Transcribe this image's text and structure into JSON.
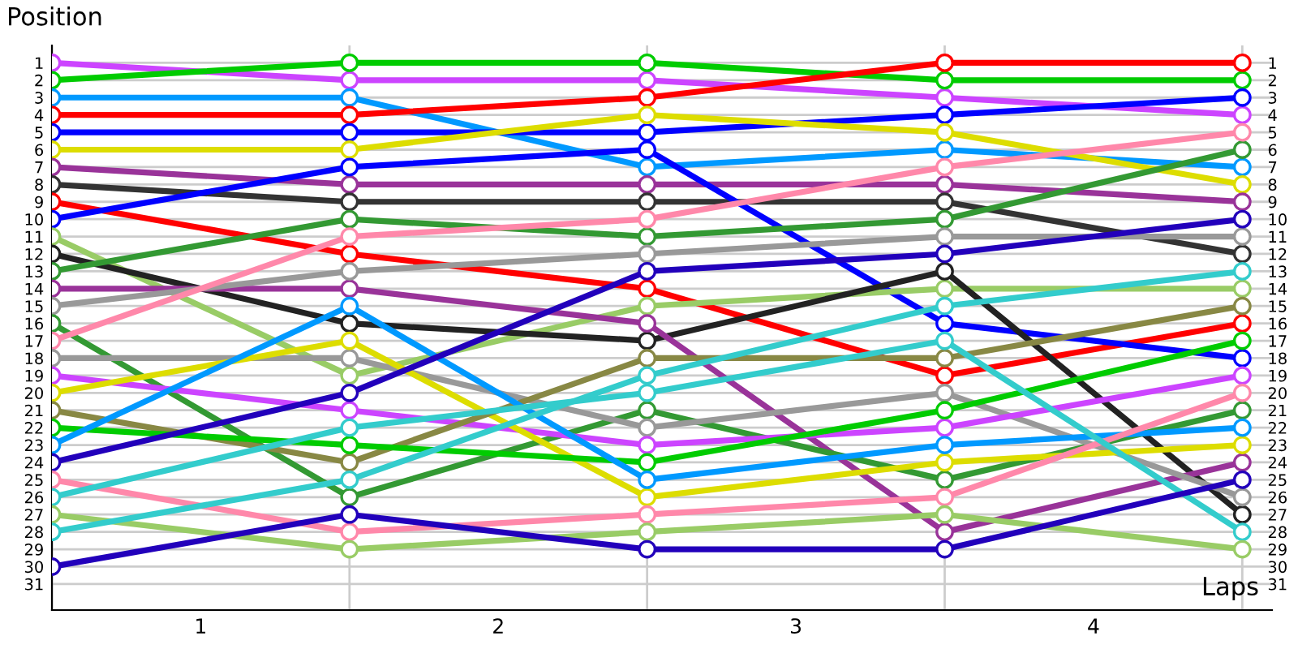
{
  "chart_data": {
    "type": "line",
    "ylabel": "Position",
    "xlabel": "Laps",
    "x": [
      0,
      1,
      2,
      3,
      4
    ],
    "xlim": [
      0,
      4.1
    ],
    "xticks": [
      {
        "value": 0,
        "label": null
      },
      {
        "value": 0.5,
        "label": "1"
      },
      {
        "value": 1,
        "label": null
      },
      {
        "value": 1.5,
        "label": "2"
      },
      {
        "value": 2,
        "label": null
      },
      {
        "value": 2.5,
        "label": "3"
      },
      {
        "value": 3,
        "label": null
      },
      {
        "value": 3.5,
        "label": "4"
      },
      {
        "value": 4,
        "label": null
      }
    ],
    "ylim": [
      32.5,
      0
    ],
    "yticks": [
      1,
      2,
      3,
      4,
      5,
      6,
      7,
      8,
      9,
      10,
      11,
      12,
      13,
      14,
      15,
      16,
      17,
      18,
      19,
      20,
      21,
      22,
      23,
      24,
      25,
      26,
      27,
      28,
      29,
      30,
      31
    ],
    "y2lim": [
      32.5,
      0
    ],
    "y2ticks": [
      1,
      2,
      3,
      4,
      5,
      6,
      7,
      8,
      9,
      10,
      11,
      12,
      13,
      14,
      15,
      16,
      17,
      18,
      19,
      20,
      21,
      22,
      23,
      24,
      25,
      26,
      27,
      28,
      29,
      30,
      31
    ],
    "grid": true,
    "legend": false,
    "marker": "circle",
    "line_style": "solid",
    "series": [
      {
        "color": "#cc44ff",
        "values": [
          1,
          2,
          2,
          3,
          4
        ]
      },
      {
        "color": "#00cc00",
        "values": [
          2,
          1,
          1,
          2,
          2
        ]
      },
      {
        "color": "#0099ff",
        "values": [
          3,
          3,
          7,
          6,
          7
        ]
      },
      {
        "color": "#ff0000",
        "values": [
          4,
          4,
          3,
          1,
          1
        ]
      },
      {
        "color": "#0000ff",
        "values": [
          5,
          5,
          5,
          4,
          3
        ]
      },
      {
        "color": "#dddd00",
        "values": [
          6,
          6,
          4,
          5,
          8
        ]
      },
      {
        "color": "#993399",
        "values": [
          7,
          8,
          8,
          8,
          9
        ]
      },
      {
        "color": "#333333",
        "values": [
          8,
          9,
          9,
          9,
          12
        ]
      },
      {
        "color": "#ff0000",
        "values": [
          9,
          12,
          14,
          19,
          16
        ]
      },
      {
        "color": "#0000ff",
        "values": [
          10,
          7,
          6,
          16,
          18
        ]
      },
      {
        "color": "#99cc66",
        "values": [
          11,
          19,
          15,
          14,
          14
        ]
      },
      {
        "color": "#222222",
        "values": [
          12,
          16,
          17,
          13,
          27
        ]
      },
      {
        "color": "#339933",
        "values": [
          13,
          10,
          11,
          10,
          6
        ]
      },
      {
        "color": "#993399",
        "values": [
          14,
          14,
          16,
          28,
          24
        ]
      },
      {
        "color": "#999999",
        "values": [
          15,
          13,
          12,
          11,
          11
        ]
      },
      {
        "color": "#339933",
        "values": [
          16,
          26,
          21,
          25,
          21
        ]
      },
      {
        "color": "#ff88aa",
        "values": [
          17,
          11,
          10,
          7,
          5
        ]
      },
      {
        "color": "#999999",
        "values": [
          18,
          18,
          22,
          20,
          26
        ]
      },
      {
        "color": "#cc44ff",
        "values": [
          19,
          21,
          23,
          22,
          19
        ]
      },
      {
        "color": "#dddd00",
        "values": [
          20,
          17,
          26,
          24,
          23
        ]
      },
      {
        "color": "#888844",
        "values": [
          21,
          24,
          18,
          18,
          15
        ]
      },
      {
        "color": "#00cc00",
        "values": [
          22,
          23,
          24,
          21,
          17
        ]
      },
      {
        "color": "#0099ff",
        "values": [
          23,
          15,
          25,
          23,
          22
        ]
      },
      {
        "color": "#2200bb",
        "values": [
          24,
          20,
          13,
          12,
          10
        ]
      },
      {
        "color": "#ff88aa",
        "values": [
          25,
          28,
          27,
          26,
          20
        ]
      },
      {
        "color": "#33cccc",
        "values": [
          26,
          22,
          20,
          17,
          28
        ]
      },
      {
        "color": "#99cc66",
        "values": [
          27,
          29,
          28,
          27,
          29
        ]
      },
      {
        "color": "#33cccc",
        "values": [
          28,
          25,
          19,
          15,
          13
        ]
      },
      {
        "color": "#2200bb",
        "values": [
          30,
          27,
          29,
          29,
          25
        ]
      }
    ]
  }
}
